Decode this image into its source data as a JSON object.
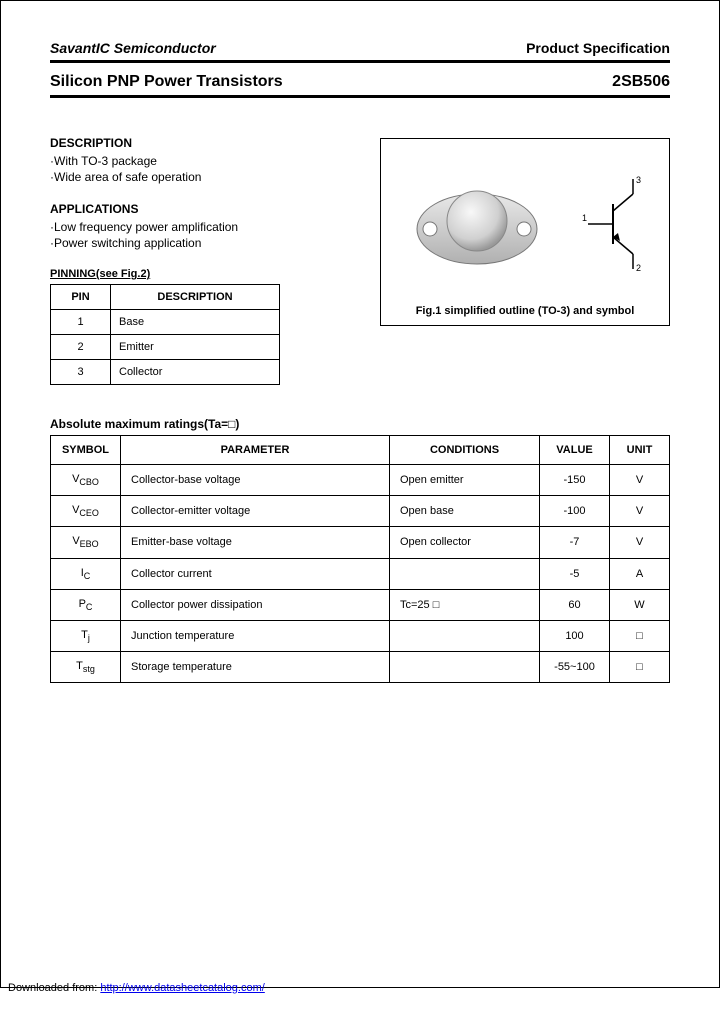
{
  "header": {
    "company": "SavantIC Semiconductor",
    "spec": "Product Specification"
  },
  "title": {
    "left": "Silicon PNP Power Transistors",
    "right": "2SB506"
  },
  "description": {
    "heading": "DESCRIPTION",
    "items": [
      "·With TO-3 package",
      "·Wide area of safe operation"
    ]
  },
  "applications": {
    "heading": "APPLICATIONS",
    "items": [
      "·Low frequency power amplification",
      "·Power switching application"
    ]
  },
  "pinning": {
    "heading": "PINNING(see Fig.2)",
    "columns": [
      "PIN",
      "DESCRIPTION"
    ],
    "rows": [
      [
        "1",
        "Base"
      ],
      [
        "2",
        "Emitter"
      ],
      [
        "3",
        "Collector"
      ]
    ]
  },
  "figure": {
    "caption": "Fig.1 simplified outline (TO-3) and symbol",
    "pin_labels": [
      "1",
      "2",
      "3"
    ]
  },
  "ratings": {
    "heading": "Absolute maximum ratings(Ta=□)",
    "columns": [
      "SYMBOL",
      "PARAMETER",
      "CONDITIONS",
      "VALUE",
      "UNIT"
    ],
    "rows": [
      {
        "symbol": "V",
        "sub": "CBO",
        "param": "Collector-base voltage",
        "cond": "Open emitter",
        "value": "-150",
        "unit": "V"
      },
      {
        "symbol": "V",
        "sub": "CEO",
        "param": "Collector-emitter voltage",
        "cond": "Open base",
        "value": "-100",
        "unit": "V"
      },
      {
        "symbol": "V",
        "sub": "EBO",
        "param": "Emitter-base voltage",
        "cond": "Open collector",
        "value": "-7",
        "unit": "V"
      },
      {
        "symbol": "I",
        "sub": "C",
        "param": "Collector current",
        "cond": "",
        "value": "-5",
        "unit": "A"
      },
      {
        "symbol": "P",
        "sub": "C",
        "param": "Collector power dissipation",
        "cond": "Tc=25 □",
        "value": "60",
        "unit": "W"
      },
      {
        "symbol": "T",
        "sub": "j",
        "param": "Junction temperature",
        "cond": "",
        "value": "100",
        "unit": "□"
      },
      {
        "symbol": "T",
        "sub": "stg",
        "param": "Storage temperature",
        "cond": "",
        "value": "-55~100",
        "unit": "□"
      }
    ],
    "col_widths": [
      "70px",
      "auto",
      "150px",
      "70px",
      "60px"
    ]
  },
  "footer": {
    "prefix": "Downloaded from: ",
    "url": "http://www.datasheetcatalog.com/"
  },
  "colors": {
    "text": "#000000",
    "background": "#ffffff",
    "link": "#0000ee",
    "border": "#000000"
  }
}
